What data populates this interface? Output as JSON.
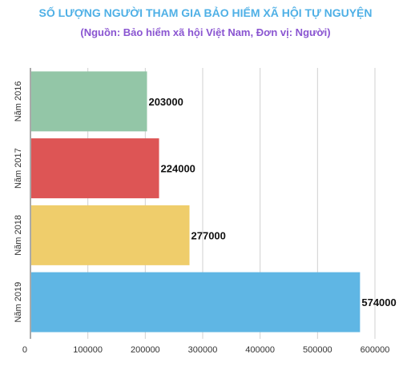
{
  "chart_data": {
    "type": "bar",
    "orientation": "horizontal",
    "title": "SỐ LƯỢNG NGƯỜI THAM GIA BẢO HIỂM XÃ HỘI TỰ NGUYỆN",
    "subtitle": "(Nguồn: Bảo hiểm xã hội Việt Nam, Đơn vị: Người)",
    "categories": [
      "Năm 2016",
      "Năm 2017",
      "Năm 2018",
      "Năm 2019"
    ],
    "values": [
      203000,
      224000,
      277000,
      574000
    ],
    "value_labels": [
      "203000",
      "224000",
      "277000",
      "574000"
    ],
    "bar_colors": [
      "#93c6a7",
      "#dd5555",
      "#efcd6b",
      "#5fb6e4"
    ],
    "xlim": [
      0,
      600000
    ],
    "x_ticks": [
      0,
      100000,
      200000,
      300000,
      400000,
      500000,
      600000
    ],
    "x_tick_labels": [
      "0",
      "100000",
      "200000",
      "300000",
      "400000",
      "500000",
      "600000"
    ],
    "grid": true
  }
}
